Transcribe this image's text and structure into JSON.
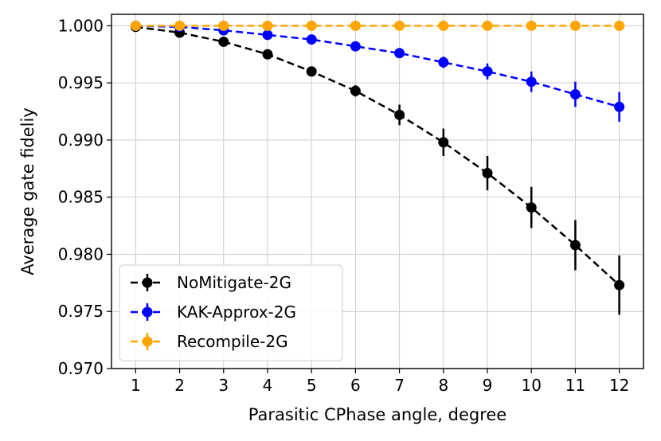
{
  "chart_data": {
    "type": "line",
    "xlabel": "Parasitic CPhase angle, degree",
    "ylabel": "Average gate fideliy",
    "x": [
      1,
      2,
      3,
      4,
      5,
      6,
      7,
      8,
      9,
      10,
      11,
      12
    ],
    "xlim": [
      0.45,
      12.55
    ],
    "ylim": [
      0.97,
      1.001
    ],
    "xticks": [
      "1",
      "2",
      "3",
      "4",
      "5",
      "6",
      "7",
      "8",
      "9",
      "10",
      "11",
      "12"
    ],
    "yticks": [
      "0.970",
      "0.975",
      "0.980",
      "0.985",
      "0.990",
      "0.995",
      "1.000"
    ],
    "grid": true,
    "legend_position": "lower-left",
    "series": [
      {
        "name": "NoMitigate-2G",
        "color": "#000000",
        "values": [
          0.9999,
          0.9994,
          0.9986,
          0.9975,
          0.996,
          0.9943,
          0.9922,
          0.9898,
          0.9871,
          0.9841,
          0.9808,
          0.9773
        ],
        "errors": [
          0.0001,
          0.0001,
          0.0002,
          0.0002,
          0.0003,
          0.0005,
          0.0009,
          0.0012,
          0.0015,
          0.0018,
          0.0022,
          0.0026
        ]
      },
      {
        "name": "KAK-Approx-2G",
        "color": "#0000ff",
        "values": [
          1.0,
          0.9999,
          0.9996,
          0.9992,
          0.9988,
          0.9982,
          0.9976,
          0.9968,
          0.996,
          0.9951,
          0.994,
          0.9929
        ],
        "errors": [
          0.0,
          0.0,
          0.0001,
          0.0001,
          0.0002,
          0.0003,
          0.0004,
          0.0005,
          0.0007,
          0.0009,
          0.0011,
          0.0013
        ]
      },
      {
        "name": "Recompile-2G",
        "color": "#ffa500",
        "values": [
          1.0,
          1.0,
          1.0,
          1.0,
          1.0,
          1.0,
          1.0,
          1.0,
          1.0,
          1.0,
          1.0,
          1.0
        ],
        "errors": [
          0,
          0,
          0,
          0,
          0,
          0,
          0,
          0,
          0,
          0,
          0,
          0
        ]
      }
    ]
  }
}
